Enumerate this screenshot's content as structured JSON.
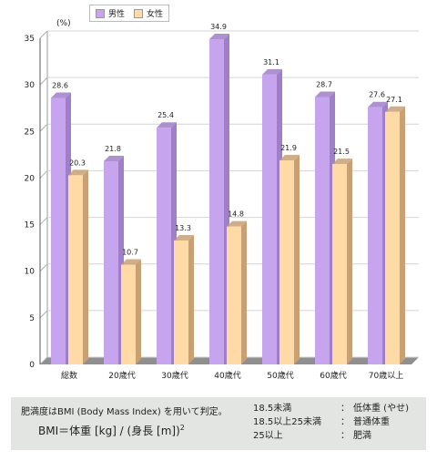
{
  "chart_data": {
    "type": "bar",
    "unit_label": "(%)",
    "categories": [
      "総数",
      "20歳代",
      "30歳代",
      "40歳代",
      "50歳代",
      "60歳代",
      "70歳以上"
    ],
    "series": [
      {
        "name": "男性",
        "values": [
          28.6,
          21.8,
          25.4,
          34.9,
          31.1,
          28.7,
          27.6
        ],
        "color": "#c6a4ee",
        "side_color": "#9f7fc7"
      },
      {
        "name": "女性",
        "values": [
          20.3,
          10.7,
          13.3,
          14.8,
          21.9,
          21.5,
          27.1
        ],
        "color": "#ffd9a6",
        "side_color": "#c8a074"
      }
    ],
    "ylim": [
      0,
      35
    ],
    "yticks": [
      0,
      5,
      10,
      15,
      20,
      25,
      30,
      35
    ],
    "grid": true,
    "legend_position": "top-left"
  },
  "note": {
    "definition": "肥満度はBMI (Body Mass Index) を用いて判定。",
    "formula_prefix": "BMI＝体重 [kg] / (身長 [m])",
    "formula_exp": "2",
    "classes": [
      {
        "range": "18.5未満",
        "colon": "：",
        "label": "低体重 (やせ)"
      },
      {
        "range": "18.5以上25未満",
        "colon": "：",
        "label": "普通体重"
      },
      {
        "range": "25以上",
        "colon": "：",
        "label": "肥満"
      }
    ]
  }
}
